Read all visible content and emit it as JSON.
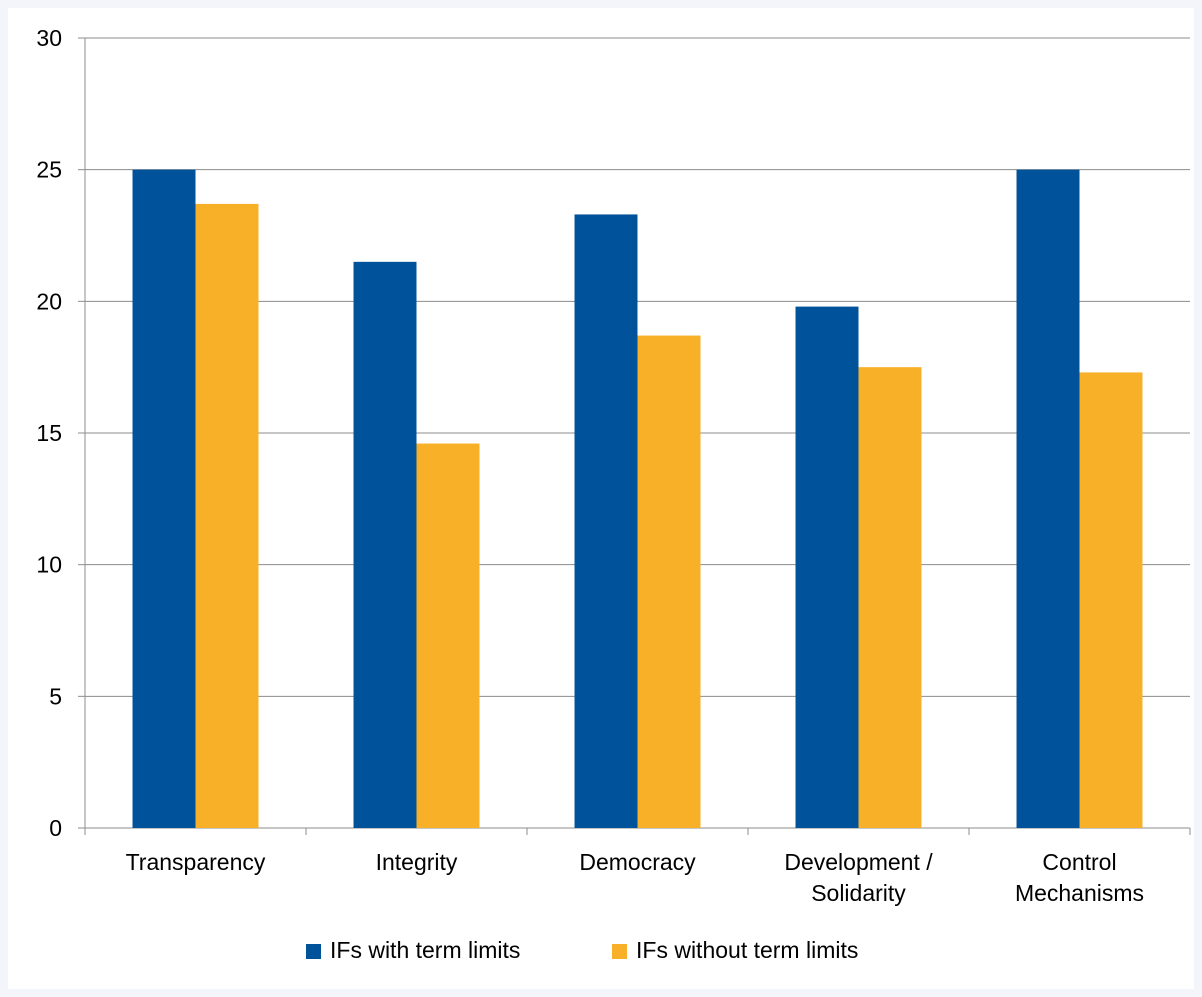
{
  "chart_data": {
    "type": "bar",
    "categories": [
      [
        "Transparency"
      ],
      [
        "Integrity"
      ],
      [
        "Democracy"
      ],
      [
        "Development /",
        "Solidarity"
      ],
      [
        "Control",
        "Mechanisms"
      ]
    ],
    "series": [
      {
        "name": "IFs with term limits",
        "color": "#00539a",
        "values": [
          25.0,
          21.5,
          23.3,
          19.8,
          25.0
        ]
      },
      {
        "name": "IFs without term limits",
        "color": "#f7b027",
        "values": [
          23.7,
          14.6,
          18.7,
          17.5,
          17.3
        ]
      }
    ],
    "ylim": [
      0,
      30
    ],
    "yticks": [
      "0",
      "5",
      "10",
      "15",
      "20",
      "25",
      "30"
    ],
    "grid": true,
    "legend_position": "bottom"
  }
}
